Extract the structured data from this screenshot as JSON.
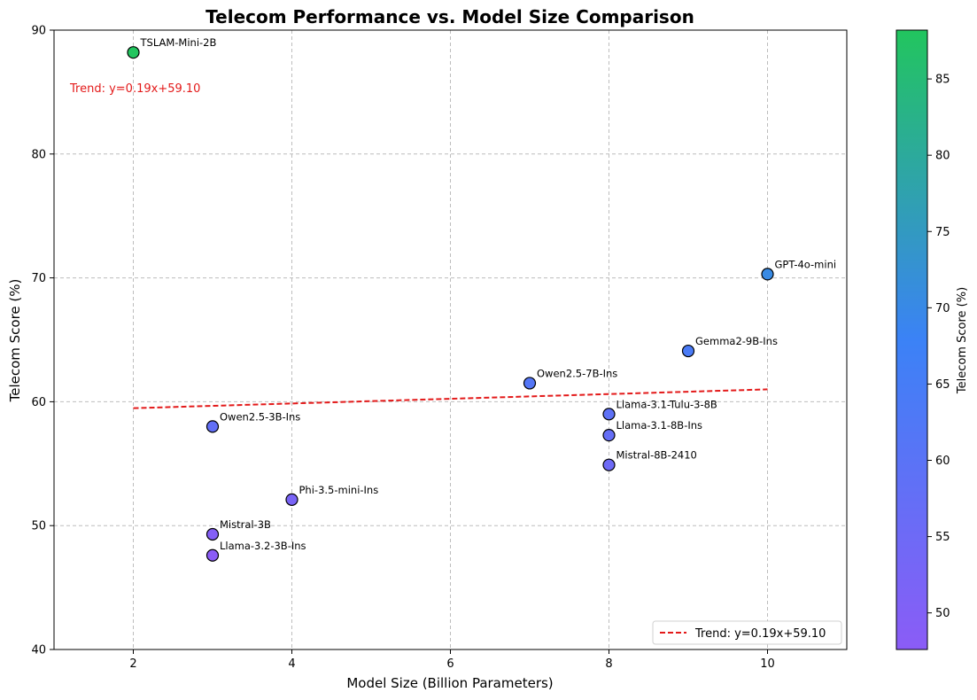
{
  "chart_data": {
    "type": "scatter",
    "title": "Telecom Performance vs. Model Size Comparison",
    "xlabel": "Model Size (Billion Parameters)",
    "ylabel": "Telecom Score (%)",
    "xlim": [
      1,
      11
    ],
    "ylim": [
      40,
      90
    ],
    "xticks": [
      2,
      4,
      6,
      8,
      10
    ],
    "yticks": [
      40,
      50,
      60,
      70,
      80,
      90
    ],
    "grid": true,
    "points": [
      {
        "label": "TSLAM-Mini-2B",
        "x": 2,
        "y": 88.2
      },
      {
        "label": "GPT-4o-mini",
        "x": 10,
        "y": 70.3
      },
      {
        "label": "Gemma2-9B-Ins",
        "x": 9,
        "y": 64.1
      },
      {
        "label": "Owen2.5-7B-Ins",
        "x": 7,
        "y": 61.5
      },
      {
        "label": "Llama-3.1-Tulu-3-8B",
        "x": 8,
        "y": 59.0
      },
      {
        "label": "Owen2.5-3B-Ins",
        "x": 3,
        "y": 58.0
      },
      {
        "label": "Llama-3.1-8B-Ins",
        "x": 8,
        "y": 57.3
      },
      {
        "label": "Mistral-8B-2410",
        "x": 8,
        "y": 54.9
      },
      {
        "label": "Phi-3.5-mini-Ins",
        "x": 4,
        "y": 52.1
      },
      {
        "label": "Mistral-3B",
        "x": 3,
        "y": 49.3
      },
      {
        "label": "Llama-3.2-3B-Ins",
        "x": 3,
        "y": 47.6
      }
    ],
    "trend": {
      "slope": 0.19,
      "intercept": 59.1,
      "x_range": [
        2,
        10
      ],
      "label": "Trend: y=0.19x+59.10",
      "color": "#e31a1a"
    },
    "trend_annotation": "Trend: y=0.19x+59.10",
    "legend": {
      "position": "bottom-right",
      "entries": [
        "Trend: y=0.19x+59.10"
      ]
    },
    "colorbar": {
      "label": "Telecom Score (%)",
      "range": [
        47.6,
        88.2
      ],
      "ticks": [
        50,
        55,
        60,
        65,
        70,
        75,
        80,
        85
      ],
      "colors": [
        "#8b5cf6",
        "#3b82f6",
        "#22c55e"
      ]
    }
  }
}
